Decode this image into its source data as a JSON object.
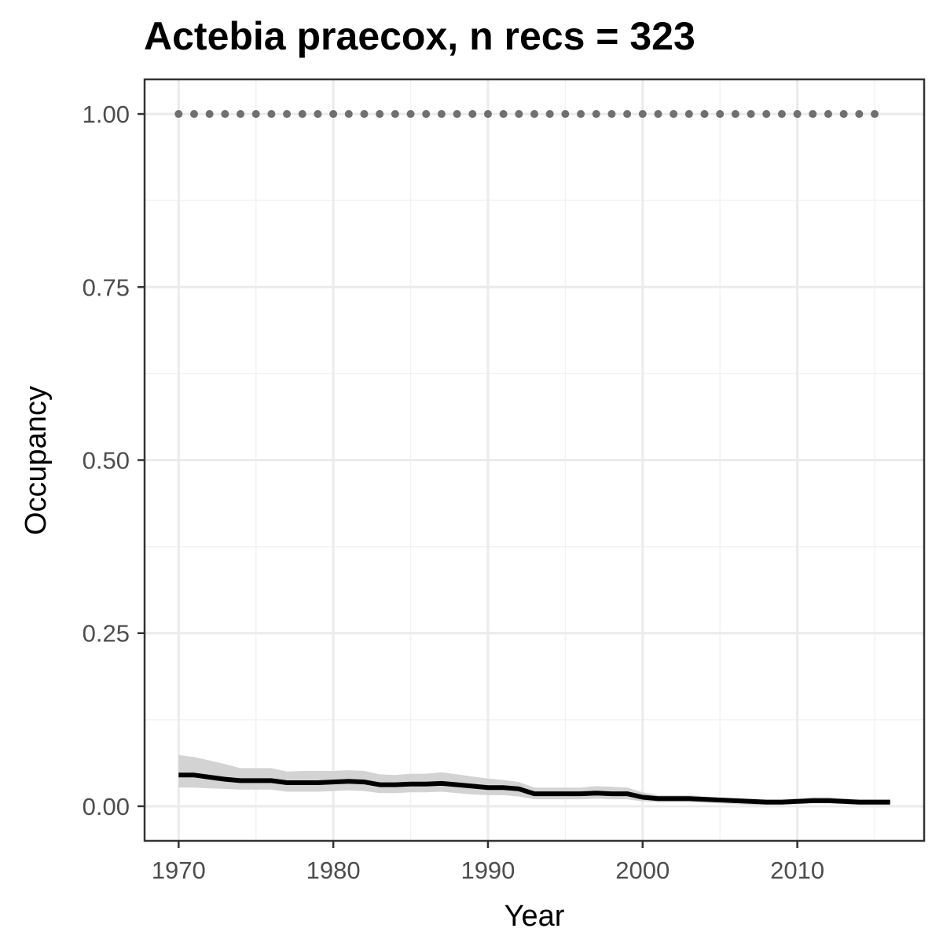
{
  "chart_data": {
    "type": "line",
    "title": "Actebia praecox, n recs = 323",
    "xlabel": "Year",
    "ylabel": "Occupancy",
    "xlim": [
      1967.8,
      2018.2
    ],
    "ylim": [
      -0.05,
      1.05
    ],
    "x_ticks": [
      1970,
      1980,
      1990,
      2000,
      2010
    ],
    "x_tick_labels": [
      "1970",
      "1980",
      "1990",
      "2000",
      "2010"
    ],
    "y_ticks": [
      0,
      0.25,
      0.5,
      0.75,
      1.0
    ],
    "y_tick_labels": [
      "0.00",
      "0.25",
      "0.50",
      "0.75",
      "1.00"
    ],
    "grid": true,
    "series": [
      {
        "kind": "ribbon",
        "color": "#d3d3d3",
        "x": [
          1970,
          1971,
          1972,
          1973,
          1974,
          1975,
          1976,
          1977,
          1978,
          1979,
          1980,
          1981,
          1982,
          1983,
          1984,
          1985,
          1986,
          1987,
          1988,
          1989,
          1990,
          1991,
          1992,
          1993,
          1994,
          1995,
          1996,
          1997,
          1998,
          1999,
          2000,
          2001,
          2002,
          2003,
          2004,
          2005,
          2006,
          2007,
          2008,
          2009,
          2010,
          2011,
          2012,
          2013,
          2014,
          2015,
          2016
        ],
        "lower": [
          0.027,
          0.027,
          0.026,
          0.025,
          0.024,
          0.024,
          0.024,
          0.021,
          0.021,
          0.021,
          0.022,
          0.023,
          0.022,
          0.019,
          0.019,
          0.02,
          0.02,
          0.021,
          0.019,
          0.017,
          0.016,
          0.016,
          0.014,
          0.01,
          0.01,
          0.01,
          0.01,
          0.011,
          0.01,
          0.01,
          0.007,
          0.006,
          0.006,
          0.006,
          0.005,
          0.004,
          0.003,
          0.002,
          0.002,
          0.002,
          0.003,
          0.004,
          0.004,
          0.003,
          0.002,
          0.002,
          0.002
        ],
        "upper": [
          0.074,
          0.071,
          0.066,
          0.061,
          0.055,
          0.055,
          0.055,
          0.05,
          0.051,
          0.051,
          0.051,
          0.052,
          0.051,
          0.046,
          0.045,
          0.047,
          0.047,
          0.049,
          0.046,
          0.043,
          0.04,
          0.038,
          0.035,
          0.027,
          0.027,
          0.027,
          0.027,
          0.029,
          0.028,
          0.027,
          0.02,
          0.016,
          0.016,
          0.016,
          0.014,
          0.012,
          0.011,
          0.01,
          0.01,
          0.01,
          0.011,
          0.013,
          0.013,
          0.011,
          0.01,
          0.01,
          0.01
        ]
      },
      {
        "kind": "line",
        "color": "#000000",
        "x": [
          1970,
          1971,
          1972,
          1973,
          1974,
          1975,
          1976,
          1977,
          1978,
          1979,
          1980,
          1981,
          1982,
          1983,
          1984,
          1985,
          1986,
          1987,
          1988,
          1989,
          1990,
          1991,
          1992,
          1993,
          1994,
          1995,
          1996,
          1997,
          1998,
          1999,
          2000,
          2001,
          2002,
          2003,
          2004,
          2005,
          2006,
          2007,
          2008,
          2009,
          2010,
          2011,
          2012,
          2013,
          2014,
          2015,
          2016
        ],
        "y": [
          0.045,
          0.045,
          0.042,
          0.039,
          0.037,
          0.037,
          0.037,
          0.034,
          0.034,
          0.034,
          0.035,
          0.036,
          0.035,
          0.031,
          0.031,
          0.032,
          0.032,
          0.033,
          0.031,
          0.029,
          0.027,
          0.027,
          0.025,
          0.018,
          0.018,
          0.018,
          0.018,
          0.019,
          0.018,
          0.018,
          0.013,
          0.011,
          0.011,
          0.011,
          0.01,
          0.009,
          0.008,
          0.007,
          0.006,
          0.006,
          0.007,
          0.008,
          0.008,
          0.007,
          0.006,
          0.006,
          0.006
        ]
      },
      {
        "kind": "points",
        "color": "#707070",
        "x": [
          1970,
          1971,
          1972,
          1973,
          1974,
          1975,
          1976,
          1977,
          1978,
          1979,
          1980,
          1981,
          1982,
          1983,
          1984,
          1985,
          1986,
          1987,
          1988,
          1989,
          1990,
          1991,
          1992,
          1993,
          1994,
          1995,
          1996,
          1997,
          1998,
          1999,
          2000,
          2001,
          2002,
          2003,
          2004,
          2005,
          2006,
          2007,
          2008,
          2009,
          2010,
          2011,
          2012,
          2013,
          2014,
          2015
        ],
        "y": [
          1,
          1,
          1,
          1,
          1,
          1,
          1,
          1,
          1,
          1,
          1,
          1,
          1,
          1,
          1,
          1,
          1,
          1,
          1,
          1,
          1,
          1,
          1,
          1,
          1,
          1,
          1,
          1,
          1,
          1,
          1,
          1,
          1,
          1,
          1,
          1,
          1,
          1,
          1,
          1,
          1,
          1,
          1,
          1,
          1,
          1
        ]
      }
    ]
  }
}
